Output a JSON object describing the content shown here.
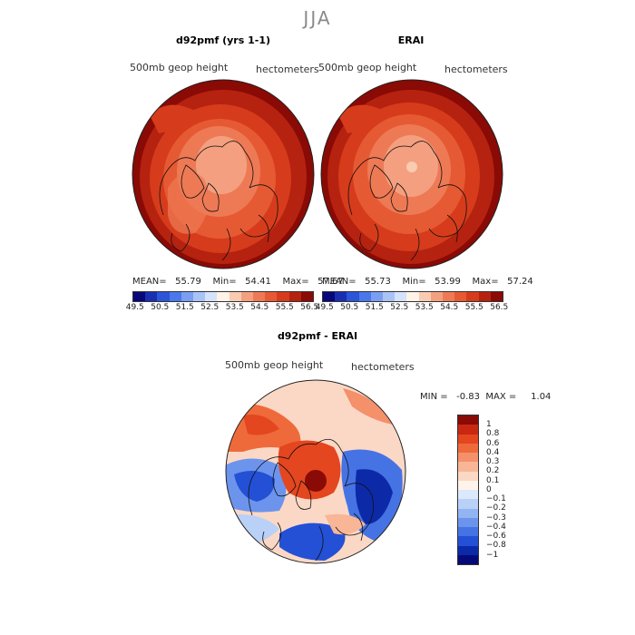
{
  "season": "JJA",
  "panels": [
    {
      "title": "d92pmf (yrs 1-1)",
      "variable": "500mb  geop  height",
      "units": "hectometers",
      "stats": "MEAN=   55.79    Min=   54.41    Max=   57.67"
    },
    {
      "title": "ERAI",
      "variable": "500mb  geop  height",
      "units": "hectometers",
      "stats": "MEAN=   55.73    Min=   53.99    Max=   57.24"
    }
  ],
  "colorbar_top": {
    "labels": [
      "49.5",
      "50.5",
      "51.5",
      "52.5",
      "53.5",
      "54.5",
      "55.5",
      "56.5"
    ],
    "colors": [
      "#08087a",
      "#1a2fb0",
      "#2c55d8",
      "#4a78ea",
      "#7a9ef2",
      "#a9c3f6",
      "#d4e2fb",
      "#fff2e6",
      "#f9cbb0",
      "#f4a080",
      "#ee7a55",
      "#e65a33",
      "#d63c1c",
      "#b62210",
      "#8a0a05"
    ]
  },
  "diff_panel": {
    "title": "d92pmf - ERAI",
    "variable": "500mb  geop  height",
    "units": "hectometers",
    "stats": "MIN =   -0.83  MAX =     1.04"
  },
  "colorbar_diff": {
    "labels": [
      "1",
      "0.8",
      "0.6",
      "0.4",
      "0.3",
      "0.2",
      "0.1",
      "0",
      "−0.1",
      "−0.2",
      "−0.3",
      "−0.4",
      "−0.6",
      "−0.8",
      "−1"
    ],
    "colors": [
      "#8a0a05",
      "#c82812",
      "#e4461f",
      "#ef6a3a",
      "#f4906a",
      "#f8b697",
      "#fbd8c5",
      "#fff3ea",
      "#dce8fb",
      "#b9d0f7",
      "#93b4f2",
      "#6c94ec",
      "#4673e4",
      "#2450d6",
      "#0c2aa8",
      "#060a78"
    ]
  }
}
